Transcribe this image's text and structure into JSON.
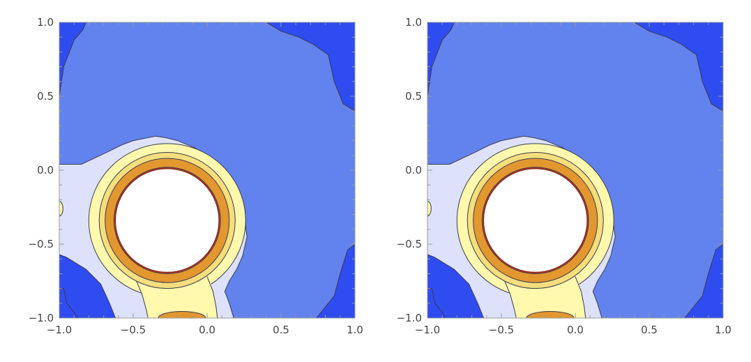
{
  "colors": {
    "background": "#ffffff",
    "frame": "#999999",
    "contour_line": "#3a3a50",
    "levels": [
      "#2f4cf0",
      "#6282ee",
      "#dde2fa",
      "#fff9ae",
      "#f5de7c",
      "#e3972f",
      "#b83a20",
      "#ffffff"
    ]
  },
  "chart_data": [
    {
      "type": "contour",
      "title": "",
      "xlabel": "",
      "ylabel": "",
      "xlim": [
        -1.0,
        1.0
      ],
      "ylim": [
        -1.0,
        1.0
      ],
      "x_ticks": [
        "−1.0",
        "−0.5",
        "0.0",
        "0.5",
        "1.0"
      ],
      "y_ticks": [
        "−1.0",
        "−0.5",
        "0.0",
        "0.5",
        "1.0"
      ],
      "x_tick_values": [
        -1.0,
        -0.5,
        0.0,
        0.5,
        1.0
      ],
      "y_tick_values": [
        -1.0,
        -0.5,
        0.0,
        0.5,
        1.0
      ],
      "grid": false,
      "legend": "none",
      "features": {
        "hole_center": [
          -0.27,
          -0.34
        ],
        "hole_radius": 0.35,
        "orange_band": [
          0.36,
          0.42
        ],
        "yellow_band_outer": 0.52,
        "light_region_top": 0.23,
        "dark_corners": [
          "top-left",
          "top-right",
          "bottom-left",
          "bottom-right"
        ]
      }
    },
    {
      "type": "contour",
      "title": "",
      "xlabel": "",
      "ylabel": "",
      "xlim": [
        -1.0,
        1.0
      ],
      "ylim": [
        -1.0,
        1.0
      ],
      "x_ticks": [
        "−1.0",
        "−0.5",
        "0.0",
        "0.5",
        "1.0"
      ],
      "y_ticks": [
        "−1.0",
        "−0.5",
        "0.0",
        "0.5",
        "1.0"
      ],
      "x_tick_values": [
        -1.0,
        -0.5,
        0.0,
        0.5,
        1.0
      ],
      "y_tick_values": [
        -1.0,
        -0.5,
        0.0,
        0.5,
        1.0
      ],
      "grid": false,
      "legend": "none",
      "features": {
        "hole_center": [
          -0.27,
          -0.34
        ],
        "hole_radius": 0.35,
        "orange_band": [
          0.36,
          0.42
        ],
        "yellow_band_outer": 0.52,
        "light_region_top": 0.23,
        "dark_corners": [
          "top-left",
          "top-right",
          "bottom-left",
          "bottom-right"
        ]
      }
    }
  ]
}
